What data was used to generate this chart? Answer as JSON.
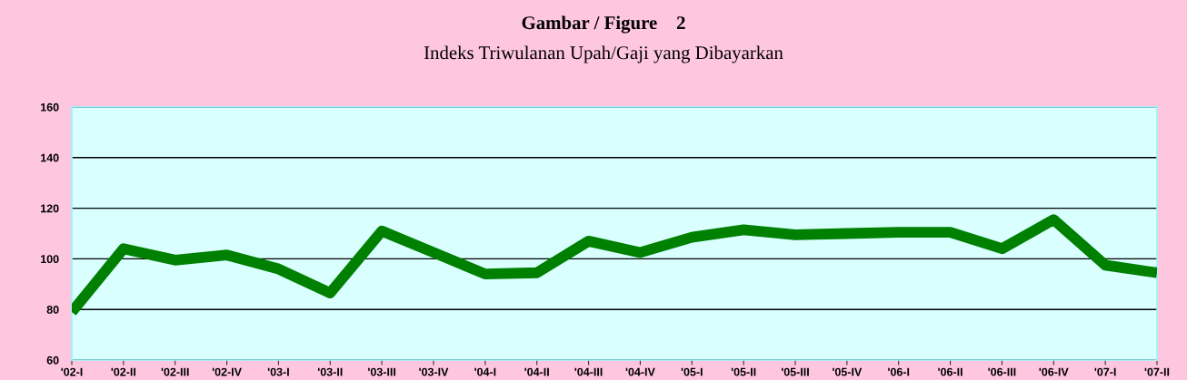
{
  "chart_data": {
    "type": "line",
    "title": "Gambar / Figure    2",
    "subtitle": "Indeks Triwulanan Upah/Gaji yang Dibayarkan",
    "categories": [
      "'02-I",
      "'02-II",
      "'02-III",
      "'02-IV",
      "'03-I",
      "'03-II",
      "'03-III",
      "'03-IV",
      "'04-I",
      "'04-II",
      "'04-III",
      "'04-IV",
      "'05-I",
      "'05-II",
      "'05-III",
      "'05-IV",
      "'06-I",
      "'06-II",
      "'06-III",
      "'06-IV",
      "'07-I",
      "'07-II"
    ],
    "series": [
      {
        "color": "#008000",
        "values": [
          79,
          104,
          99.5,
          101.5,
          96,
          86.5,
          111,
          102.5,
          94,
          94.5,
          107,
          102.5,
          108.5,
          111.5,
          109.5,
          110,
          110.5,
          110.5,
          104,
          115.5,
          97.5,
          94.5
        ]
      }
    ],
    "ylim": [
      60,
      160
    ],
    "yticks": [
      60,
      80,
      100,
      120,
      140,
      160
    ],
    "grid": "y",
    "line_style": "solid"
  }
}
